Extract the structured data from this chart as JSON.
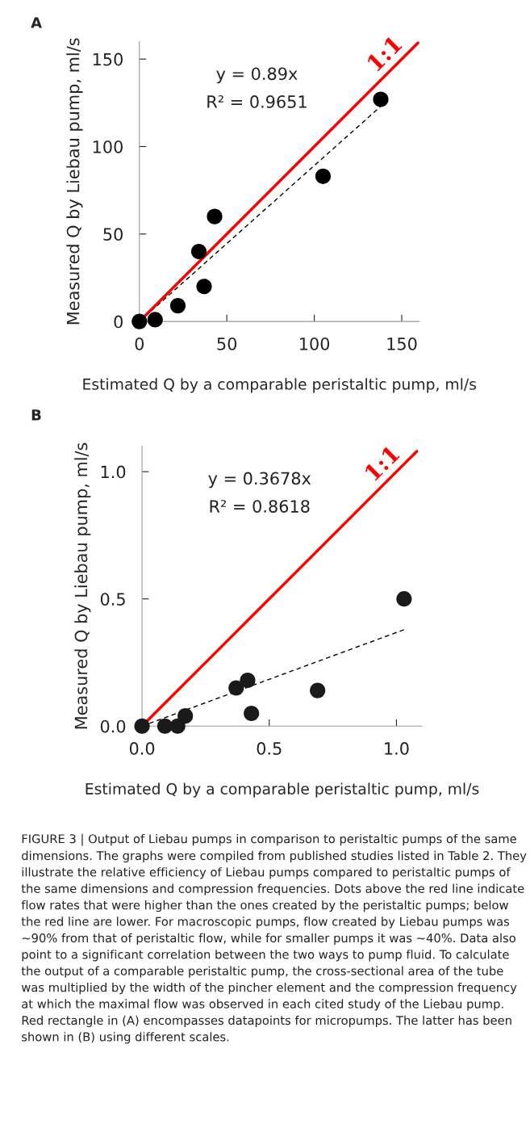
{
  "chart_data": [
    {
      "type": "scatter",
      "title": "A",
      "xlabel": "Estimated Q by a comparable peristaltic pump, ml/s",
      "ylabel": "Measured Q by Liebau pump, ml/s",
      "xlim": [
        0,
        160
      ],
      "ylim": [
        0,
        160
      ],
      "xticks": [
        0,
        50,
        100,
        150
      ],
      "yticks": [
        0,
        50,
        100,
        150
      ],
      "grid": false,
      "annotations": [
        "y = 0.89x",
        "R² = 0.9651"
      ],
      "series": [
        {
          "marker": "circle",
          "color": "#000000",
          "x": [
            0,
            9,
            22,
            34,
            37,
            43,
            105,
            138
          ],
          "values": [
            0,
            1,
            9,
            40,
            20,
            60,
            83,
            127
          ]
        },
        {
          "type": "line",
          "line_style": "dashed",
          "color": "#000000",
          "x": [
            0,
            138
          ],
          "values": [
            0,
            123
          ]
        },
        {
          "type": "line",
          "line_style": "solid",
          "name": "1:1",
          "color": "#ff0000",
          "x": [
            0,
            160
          ],
          "values": [
            0,
            160
          ]
        }
      ]
    },
    {
      "type": "scatter",
      "title": "B",
      "xlabel": "Estimated Q by a comparable peristaltic pump, ml/s",
      "ylabel": "Measured Q by Liebau pump, ml/s",
      "xlim": [
        0,
        1.1
      ],
      "ylim": [
        0,
        1.1
      ],
      "xticks": [
        {
          "value": 0,
          "label": "0.0"
        },
        {
          "value": 0.5,
          "label": "0.5"
        },
        {
          "value": 1,
          "label": "1.0"
        }
      ],
      "yticks": [
        {
          "value": 0,
          "label": "0.0"
        },
        {
          "value": 0.5,
          "label": "0.5"
        },
        {
          "value": 1,
          "label": "1.0"
        }
      ],
      "grid": false,
      "annotations": [
        "y = 0.3678x",
        "R² = 0.8618",
        "FIGURE 3 | Output of Liebau pumps in comparison to peristaltic pumps of the same dimensions. The graphs were compiled from published studies listed in Table 2. They illustrate the relative efficiency of Liebau pumps compared to peristaltic pumps of the same dimensions and compression frequencies. Dots above the red line indicate flow rates that were higher than the ones created by the peristaltic pumps; below the red line are lower. For macroscopic pumps, flow created by Liebau pumps was ∼90% from that of peristaltic flow, while for smaller pumps it was ∼40%. Data also point to a significant correlation between the two ways to pump fluid. To calculate the output of a comparable peristaltic pump, the cross-sectional area of the tube was multiplied by the width of the pincher element and the compression frequency at which the maximal flow was observed in each cited study of the Liebau pump. Red rectangle in (A) encompasses datapoints for micropumps. The latter has been shown in (B) using different scales."
      ],
      "series": [
        {
          "marker": "circle",
          "color": "#1a1a1a",
          "x": [
            0,
            0.09,
            0.14,
            0.17,
            0.37,
            0.415,
            0.43,
            0.69,
            1.03
          ],
          "values": [
            0,
            0,
            0,
            0.04,
            0.15,
            0.18,
            0.05,
            0.14,
            0.5
          ]
        },
        {
          "type": "line",
          "line_style": "dashed",
          "color": "#000000",
          "x": [
            0,
            1.03
          ],
          "values": [
            0,
            0.379
          ]
        },
        {
          "type": "line",
          "line_style": "solid",
          "name": "1:1",
          "color": "#ff0000",
          "x": [
            0,
            1.08
          ],
          "values": [
            0,
            1.08
          ]
        }
      ]
    }
  ]
}
